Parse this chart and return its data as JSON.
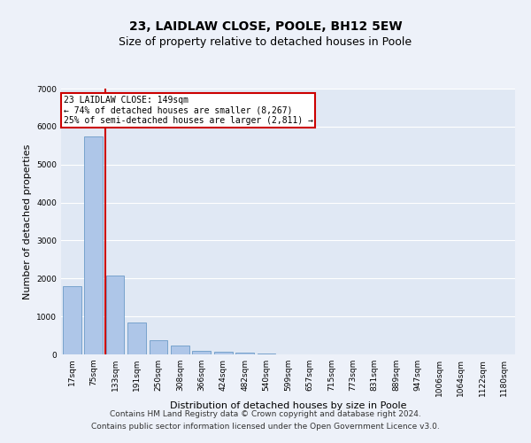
{
  "title1": "23, LAIDLAW CLOSE, POOLE, BH12 5EW",
  "title2": "Size of property relative to detached houses in Poole",
  "xlabel": "Distribution of detached houses by size in Poole",
  "ylabel": "Number of detached properties",
  "bar_labels": [
    "17sqm",
    "75sqm",
    "133sqm",
    "191sqm",
    "250sqm",
    "308sqm",
    "366sqm",
    "424sqm",
    "482sqm",
    "540sqm",
    "599sqm",
    "657sqm",
    "715sqm",
    "773sqm",
    "831sqm",
    "889sqm",
    "947sqm",
    "1006sqm",
    "1064sqm",
    "1122sqm",
    "1180sqm"
  ],
  "bar_values": [
    1800,
    5750,
    2070,
    830,
    380,
    230,
    100,
    70,
    55,
    30,
    0,
    0,
    0,
    0,
    0,
    0,
    0,
    0,
    0,
    0,
    0
  ],
  "bar_color": "#aec6e8",
  "bar_edge_color": "#5a8fc0",
  "property_line_label": "23 LAIDLAW CLOSE: 149sqm",
  "annotation_line1": "← 74% of detached houses are smaller (8,267)",
  "annotation_line2": "25% of semi-detached houses are larger (2,811) →",
  "annotation_box_color": "#ffffff",
  "annotation_border_color": "#cc0000",
  "vline_color": "#cc0000",
  "vline_x": 1.55,
  "ylim": [
    0,
    7000
  ],
  "yticks": [
    0,
    1000,
    2000,
    3000,
    4000,
    5000,
    6000,
    7000
  ],
  "footer1": "Contains HM Land Registry data © Crown copyright and database right 2024.",
  "footer2": "Contains public sector information licensed under the Open Government Licence v3.0.",
  "background_color": "#edf1f9",
  "plot_bg_color": "#e0e8f4",
  "grid_color": "#ffffff",
  "title1_fontsize": 10,
  "title2_fontsize": 9,
  "label_fontsize": 8,
  "tick_fontsize": 6.5,
  "footer_fontsize": 6.5
}
